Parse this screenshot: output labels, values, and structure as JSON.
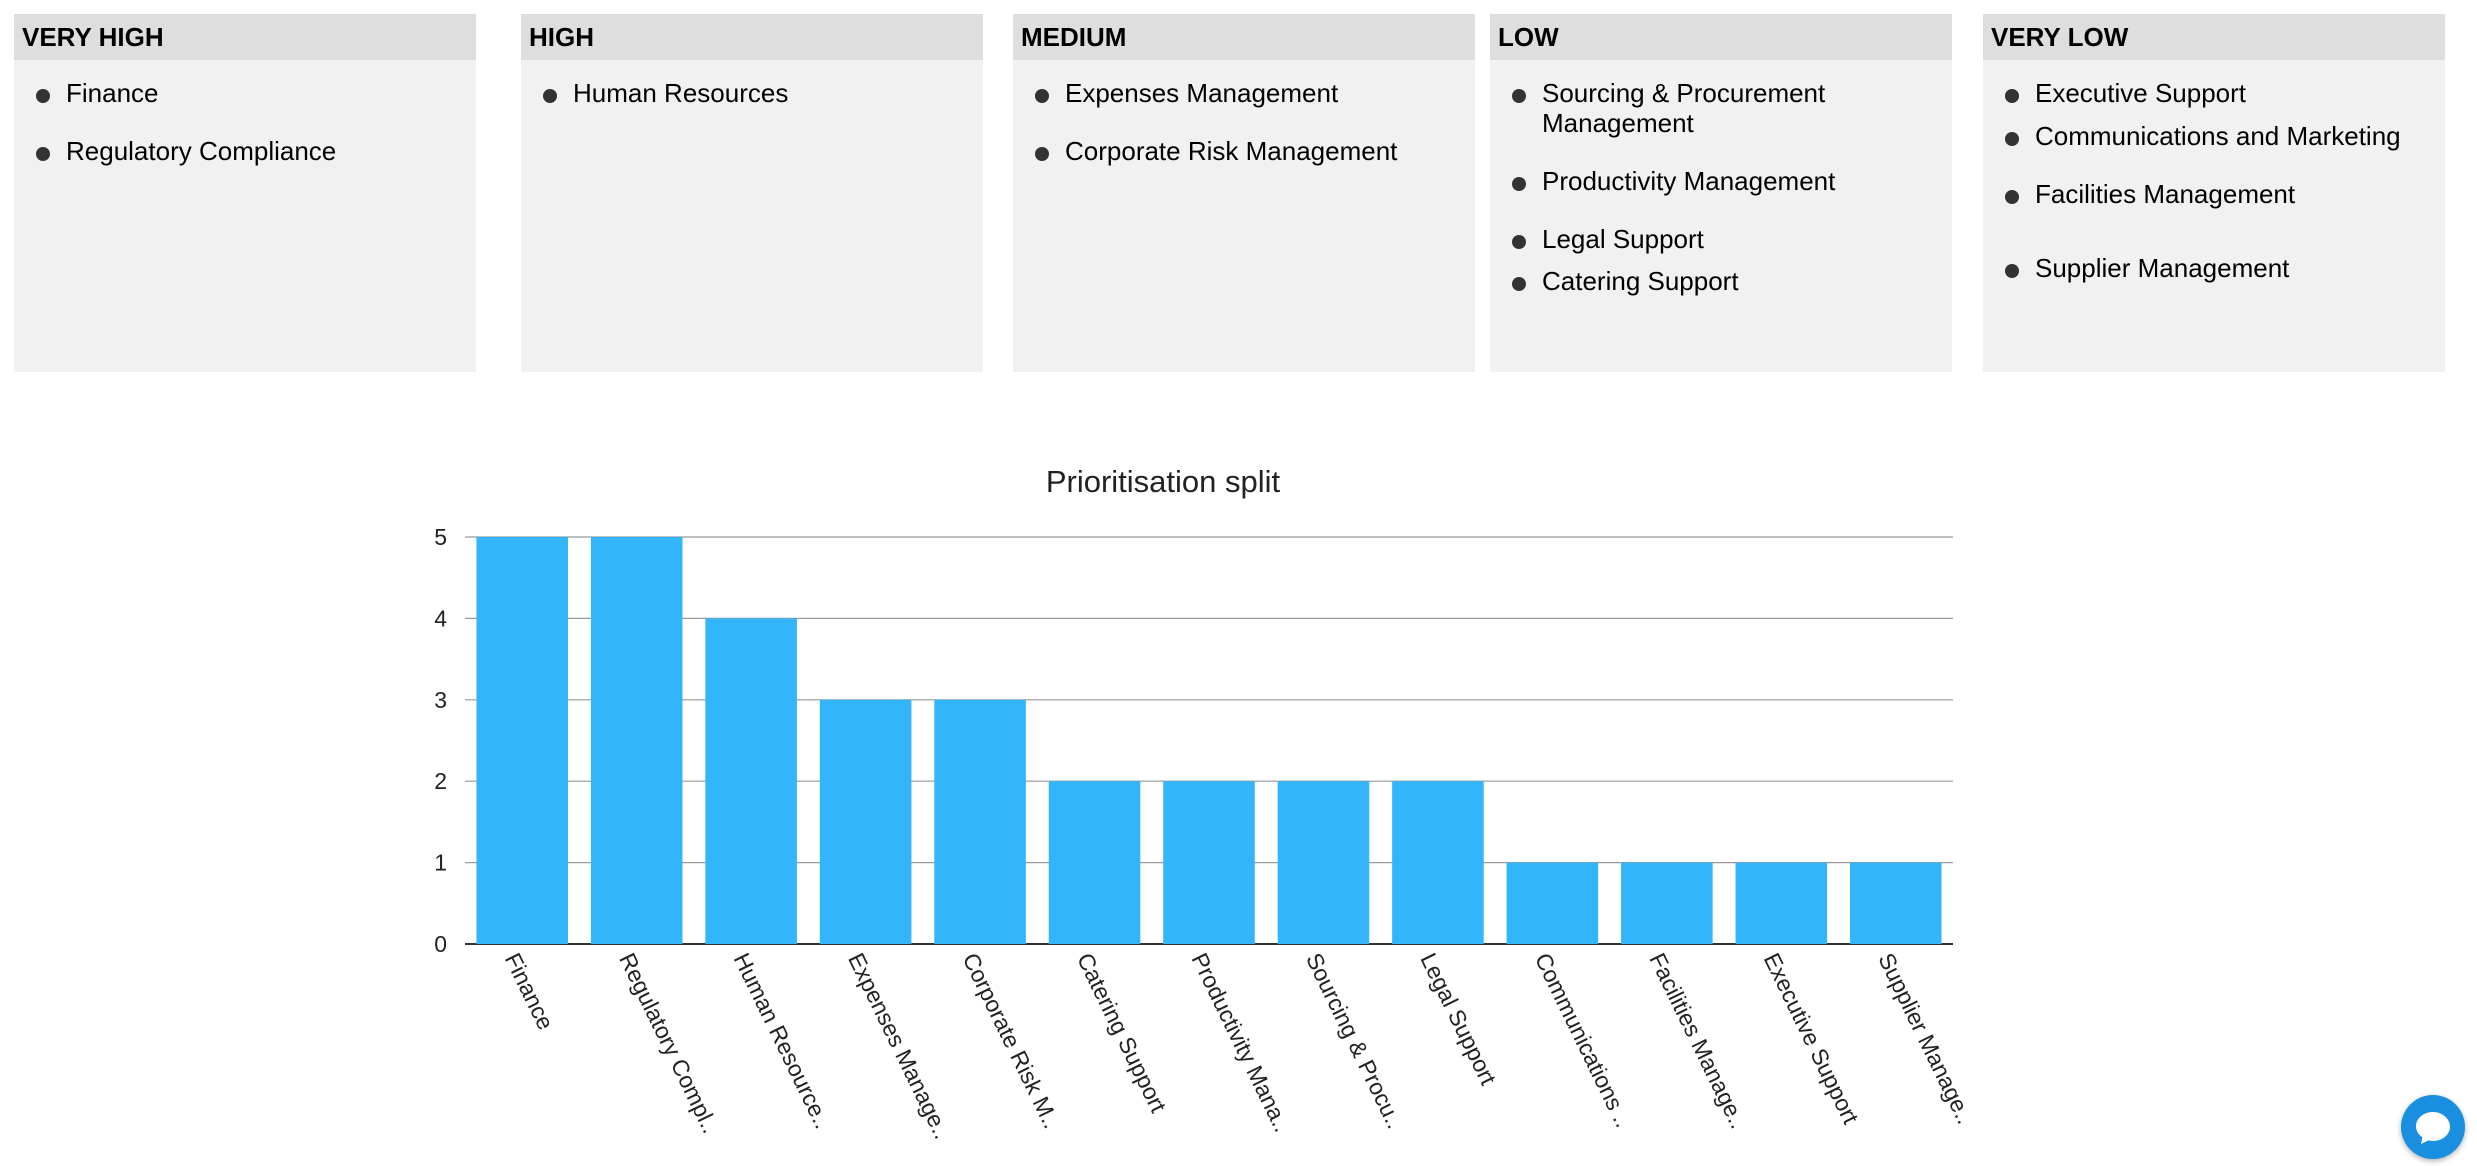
{
  "panels": [
    {
      "title": "VERY HIGH",
      "items": [
        "Finance",
        "Regulatory Compliance"
      ]
    },
    {
      "title": "HIGH",
      "items": [
        "Human Resources"
      ]
    },
    {
      "title": "MEDIUM",
      "items": [
        "Expenses Management",
        "Corporate Risk Management"
      ]
    },
    {
      "title": "LOW",
      "items": [
        "Sourcing & Procurement Management",
        "Productivity Management",
        "Legal Support",
        "Catering Support"
      ]
    },
    {
      "title": "VERY LOW",
      "items": [
        "Executive Support",
        "Communications and Marketing",
        "Facilities Management",
        "Supplier Management"
      ]
    }
  ],
  "chart_data": {
    "type": "bar",
    "title": "Prioritisation split",
    "categories": [
      "Finance",
      "Regulatory Compl..",
      "Human Resource..",
      "Expenses Manage..",
      "Corporate Risk M..",
      "Catering Support",
      "Productivity Mana..",
      "Sourcing & Procu..",
      "Legal Support",
      "Communications ..",
      "Facilities Manage..",
      "Executive Support",
      "Supplier Manage.."
    ],
    "values": [
      5,
      5,
      4,
      3,
      3,
      2,
      2,
      2,
      2,
      1,
      1,
      1,
      1
    ],
    "yticks": [
      "0",
      "1",
      "2",
      "3",
      "4",
      "5"
    ],
    "ylim": [
      0,
      5
    ],
    "grid": true,
    "legend": "none",
    "bar_color": "#33b5fb"
  },
  "chat": {
    "icon": "chat-bubble-icon"
  }
}
